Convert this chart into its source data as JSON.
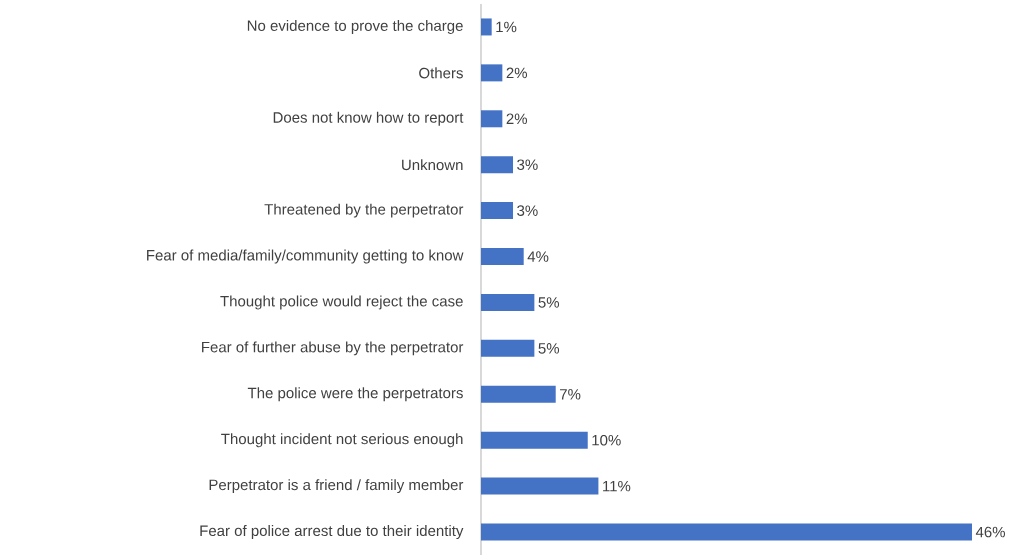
{
  "chart_data": {
    "type": "bar",
    "orientation": "horizontal",
    "categories": [
      "No evidence to prove the charge",
      "Others",
      "Does not know how to report",
      "Unknown",
      "Threatened by the perpetrator",
      "Fear of media/family/community getting to know",
      "Thought police would reject the case",
      "Fear of further abuse by the perpetrator",
      "The police were the perpetrators",
      "Thought incident not serious enough",
      "Perpetrator is a friend / family member",
      "Fear of police arrest due to their identity"
    ],
    "values": [
      1,
      2,
      2,
      3,
      3,
      4,
      5,
      5,
      7,
      10,
      11,
      46
    ],
    "value_labels": [
      "1%",
      "2%",
      "2%",
      "3%",
      "3%",
      "4%",
      "5%",
      "5%",
      "7%",
      "10%",
      "11%",
      "46%"
    ],
    "color": "#4472c4"
  }
}
